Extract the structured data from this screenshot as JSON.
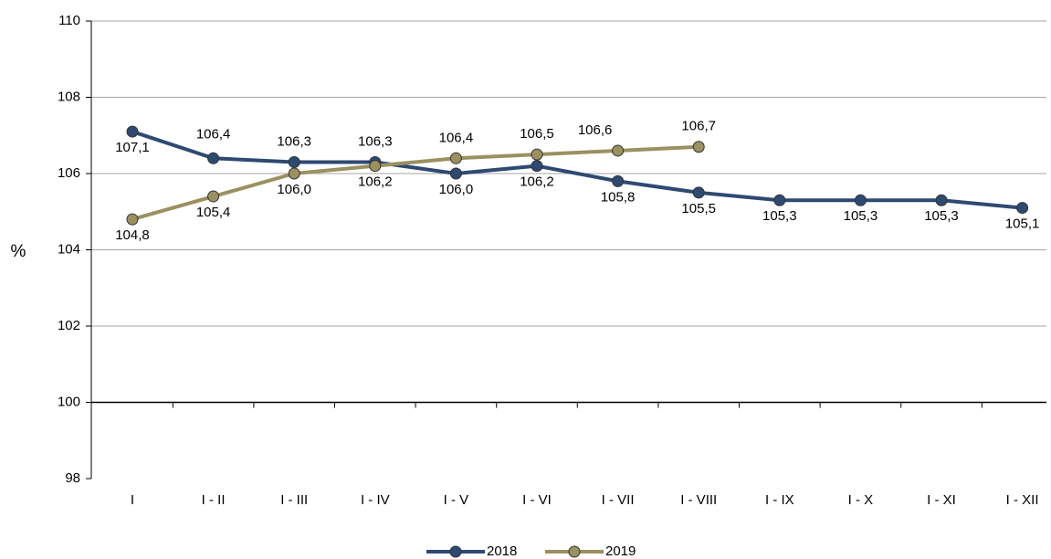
{
  "chart_data": {
    "type": "line",
    "y_label": "%",
    "categories": [
      "I",
      "I - II",
      "I - III",
      "I - IV",
      "I - V",
      "I - VI",
      "I - VII",
      "I - VIII",
      "I - IX",
      "I - X",
      "I - XI",
      "I - XII"
    ],
    "series": [
      {
        "name": "2018",
        "color": "#2e4a72",
        "values": [
          107.1,
          106.4,
          106.3,
          106.3,
          106.0,
          106.2,
          105.8,
          105.5,
          105.3,
          105.3,
          105.3,
          105.1
        ],
        "value_labels": [
          "107,1",
          "106,4",
          "106,3",
          "106,3",
          "106,0",
          "106,2",
          "105,8",
          "105,5",
          "105,3",
          "105,3",
          "105,3",
          "105,1"
        ]
      },
      {
        "name": "2019",
        "color": "#9b9060",
        "values": [
          104.8,
          105.4,
          106.0,
          106.2,
          106.4,
          106.5,
          106.6,
          106.7,
          null,
          null,
          null,
          null
        ],
        "value_labels": [
          "104,8",
          "105,4",
          "106,0",
          "106,2",
          "106,4",
          "106,5",
          "106,6",
          "106,7",
          null,
          null,
          null,
          null
        ]
      }
    ],
    "ylim": [
      98,
      110
    ],
    "yticks": [
      98,
      100,
      102,
      104,
      106,
      108,
      110
    ],
    "x_axis_crossing": 100,
    "grid": true,
    "legend": "bottom"
  }
}
